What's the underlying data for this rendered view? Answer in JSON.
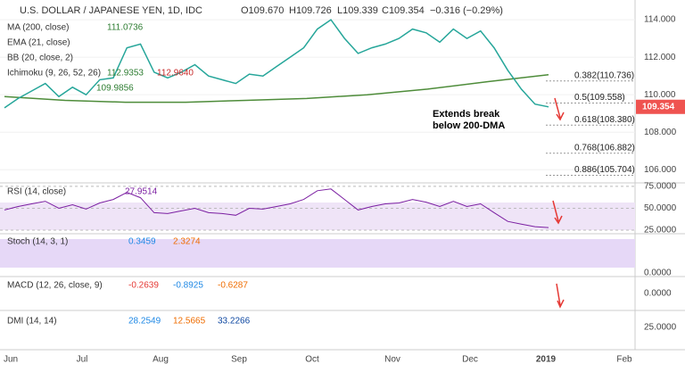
{
  "header": {
    "symbol": "U.S. DOLLAR / JAPANESE YEN, 1D, IDC",
    "open": "O109.670",
    "high": "H109.726",
    "low": "L109.339",
    "close": "C109.354",
    "change": "−0.316 (−0.29%)"
  },
  "indicators": [
    {
      "name": "MA (200, close)",
      "values": [
        "111.0736"
      ]
    },
    {
      "name": "EMA (21, close)",
      "values": []
    },
    {
      "name": "BB (20, close, 2)",
      "values": []
    },
    {
      "name": "Ichimoku (9, 26, 52, 26)",
      "values": [
        "112.9353",
        "112.9640"
      ]
    },
    {
      "name": "",
      "values": [
        "109.9856"
      ]
    }
  ],
  "price_pane": {
    "ylim": [
      105.3,
      115.05
    ],
    "yticks": [
      {
        "value": 106,
        "label": "106.000"
      },
      {
        "value": 108,
        "label": "108.000"
      },
      {
        "value": 110,
        "label": "110.000"
      },
      {
        "value": 112,
        "label": "112.000"
      },
      {
        "value": 114,
        "label": "114.000"
      }
    ],
    "closes": [
      109.3,
      109.8,
      110.2,
      110.6,
      109.9,
      110.4,
      110.0,
      110.8,
      110.9,
      112.5,
      112.7,
      111.2,
      110.9,
      111.2,
      111.6,
      111.0,
      110.8,
      110.6,
      111.1,
      111.0,
      111.5,
      112.0,
      112.5,
      113.5,
      114.0,
      113.0,
      112.2,
      112.5,
      112.7,
      113.0,
      113.5,
      113.3,
      112.8,
      113.5,
      113.0,
      113.4,
      112.5,
      111.3,
      110.3,
      109.5,
      109.35
    ],
    "ma200": [
      109.9,
      109.7,
      109.6,
      109.6,
      109.7,
      109.8,
      110.0,
      110.3,
      110.7,
      111.07
    ],
    "fib_levels": [
      {
        "value": 110.736,
        "label": "0.382(110.736)"
      },
      {
        "value": 109.558,
        "label": "0.5(109.558)"
      },
      {
        "value": 108.38,
        "label": "0.618(108.380)"
      },
      {
        "value": 106.882,
        "label": "0.768(106.882)"
      },
      {
        "value": 105.704,
        "label": "0.886(105.704)"
      }
    ],
    "last_price": {
      "value": 109.354,
      "label": "109.354"
    },
    "annotation": [
      "Extends break",
      "below 200-DMA"
    ]
  },
  "rsi_pane": {
    "name": "RSI (14, close)",
    "value": "27.9514",
    "ylim": [
      21,
      78.9
    ],
    "yticks": [
      {
        "value": 25,
        "label": "25.0000"
      },
      {
        "value": 50,
        "label": "50.0000"
      },
      {
        "value": 75,
        "label": "75.0000"
      }
    ],
    "values": [
      48,
      52,
      55,
      58,
      50,
      54,
      49,
      56,
      60,
      68,
      62,
      45,
      44,
      47,
      50,
      45,
      44,
      42,
      50,
      49,
      52,
      55,
      60,
      70,
      72,
      60,
      48,
      52,
      55,
      56,
      60,
      57,
      52,
      58,
      52,
      55,
      45,
      35,
      32,
      29,
      28
    ]
  },
  "stoch_pane": {
    "name": "Stoch (14, 3, 1)",
    "values": [
      "0.3459",
      "2.3274"
    ],
    "tick": "0.0000"
  },
  "macd_pane": {
    "name": "MACD (12, 26, close, 9)",
    "values": [
      "-0.2639",
      "-0.8925",
      "-0.6287"
    ],
    "tick": "0.0000"
  },
  "dmi_pane": {
    "name": "DMI (14, 14)",
    "values": [
      "28.2549",
      "12.5665",
      "33.2266"
    ],
    "tick": "25.0000"
  },
  "x_axis": [
    "Jun",
    "Jul",
    "Aug",
    "Sep",
    "Oct",
    "Nov",
    "Dec",
    "2019",
    "Feb"
  ]
}
